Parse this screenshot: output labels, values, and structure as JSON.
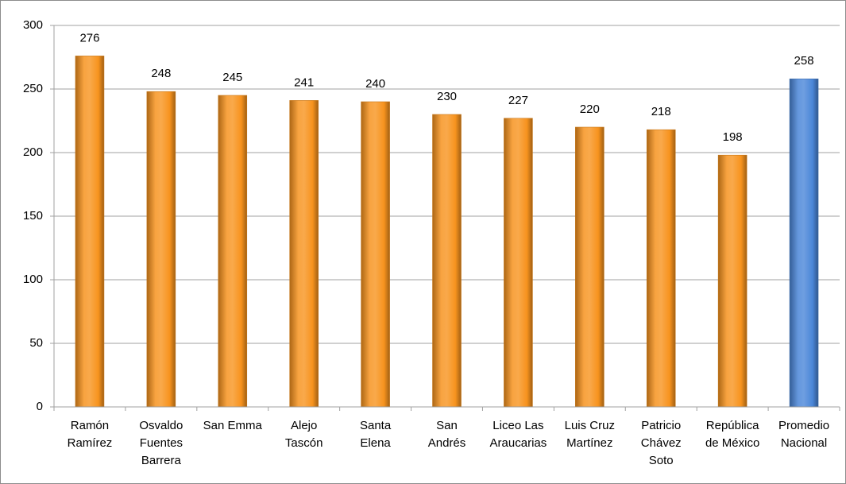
{
  "chart_data": {
    "type": "bar",
    "categories": [
      "Ramón Ramírez",
      "Osvaldo Fuentes Barrera",
      "San Emma",
      "Alejo Tascón",
      "Santa Elena",
      "San Andrés",
      "Liceo Las Araucarias",
      "Luis Cruz Martínez",
      "Patricio Chávez Soto",
      "República de México",
      "Promedio Nacional"
    ],
    "values": [
      276,
      248,
      245,
      241,
      240,
      230,
      227,
      220,
      218,
      198,
      258
    ],
    "colors": [
      "#f7931e",
      "#f7931e",
      "#f7931e",
      "#f7931e",
      "#f7931e",
      "#f7931e",
      "#f7931e",
      "#f7931e",
      "#f7931e",
      "#f7931e",
      "#4a86d8"
    ],
    "ylim": [
      0,
      300
    ],
    "yticks": [
      0,
      50,
      100,
      150,
      200,
      250,
      300
    ],
    "grid": true
  }
}
